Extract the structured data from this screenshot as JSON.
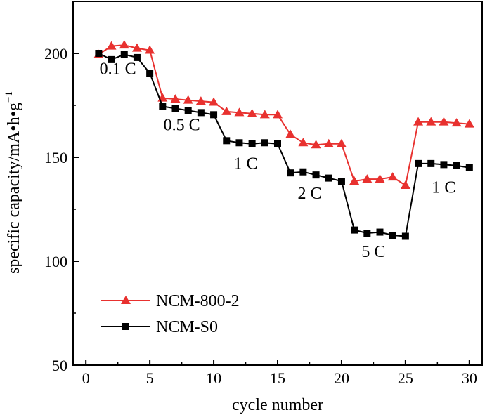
{
  "chart_data": {
    "type": "line",
    "title": "",
    "xlabel": "cycle number",
    "ylabel": "specific capacity/mA•h•g",
    "ylabel_superscript": "−1",
    "xlim": [
      -1,
      31
    ],
    "ylim": [
      50,
      225
    ],
    "xticks": [
      0,
      5,
      10,
      15,
      20,
      25,
      30
    ],
    "yticks": [
      50,
      100,
      150,
      200
    ],
    "xtick_labels": [
      "0",
      "5",
      "10",
      "15",
      "20",
      "25",
      "30"
    ],
    "ytick_labels": [
      "50",
      "100",
      "150",
      "200"
    ],
    "grid": false,
    "legend_position": "lower-left",
    "series": [
      {
        "name": "NCM-800-2",
        "color": "#e8312f",
        "marker": "triangle",
        "x": [
          1,
          2,
          3,
          4,
          5,
          6,
          7,
          8,
          9,
          10,
          11,
          12,
          13,
          14,
          15,
          16,
          17,
          18,
          19,
          20,
          21,
          22,
          23,
          24,
          25,
          26,
          27,
          28,
          29,
          30
        ],
        "values": [
          199.5,
          203.5,
          204,
          202.5,
          201.5,
          178.5,
          178,
          177.5,
          177,
          176.5,
          172,
          171.5,
          171,
          170.5,
          170.5,
          161,
          157,
          156,
          156.5,
          156.5,
          138.5,
          139.5,
          139.5,
          140.5,
          136.5,
          167,
          167,
          167,
          166.5,
          166
        ]
      },
      {
        "name": "NCM-S0",
        "color": "#000000",
        "marker": "square",
        "x": [
          1,
          2,
          3,
          4,
          5,
          6,
          7,
          8,
          9,
          10,
          11,
          12,
          13,
          14,
          15,
          16,
          17,
          18,
          19,
          20,
          21,
          22,
          23,
          24,
          25,
          26,
          27,
          28,
          29,
          30
        ],
        "values": [
          200,
          197,
          199.5,
          198,
          190.5,
          174.5,
          173.5,
          172.5,
          171.5,
          170.5,
          158,
          157,
          156.5,
          157,
          156.5,
          142.5,
          143,
          141.5,
          140,
          138.5,
          115,
          113.5,
          114,
          112.5,
          112,
          147,
          147,
          146.5,
          146,
          145
        ]
      }
    ],
    "annotations": [
      {
        "text": "0.1 C",
        "x": 2.5,
        "y": 190
      },
      {
        "text": "0.5 C",
        "x": 7.5,
        "y": 163
      },
      {
        "text": "1 C",
        "x": 12.5,
        "y": 144.5
      },
      {
        "text": "2 C",
        "x": 17.5,
        "y": 130
      },
      {
        "text": "5 C",
        "x": 22.5,
        "y": 102
      },
      {
        "text": "1 C",
        "x": 28,
        "y": 133
      }
    ]
  }
}
